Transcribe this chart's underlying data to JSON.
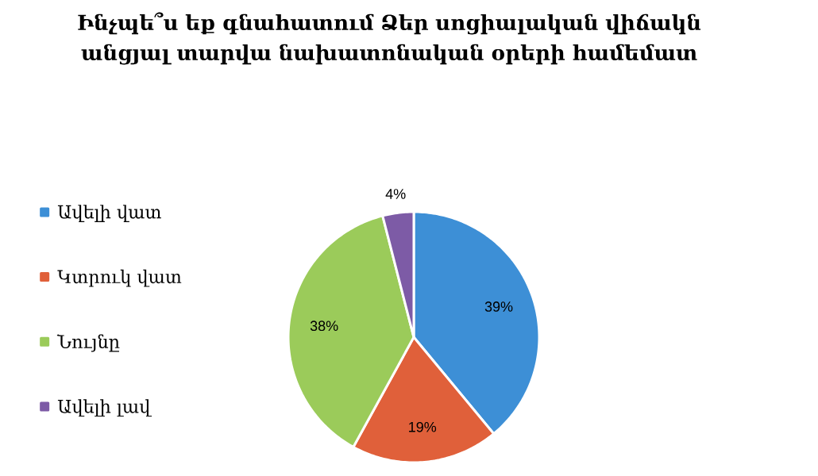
{
  "chart_data": {
    "type": "pie",
    "title": "Ինչպե՞ս եք գնահատում Ձեր սոցիալական վիճակն անցյալ տարվա նախատոնական օրերի համեմատ",
    "categories": [
      "Ավելի վատ",
      "Կտրուկ վատ",
      "Նույնը",
      "Ավելի լավ"
    ],
    "values": [
      39,
      19,
      38,
      4
    ],
    "colors": [
      "#3d8fd6",
      "#e0603a",
      "#9bcb5a",
      "#7d5ba6"
    ],
    "value_labels": [
      "39%",
      "19%",
      "38%",
      "4%"
    ],
    "legend": "left"
  }
}
